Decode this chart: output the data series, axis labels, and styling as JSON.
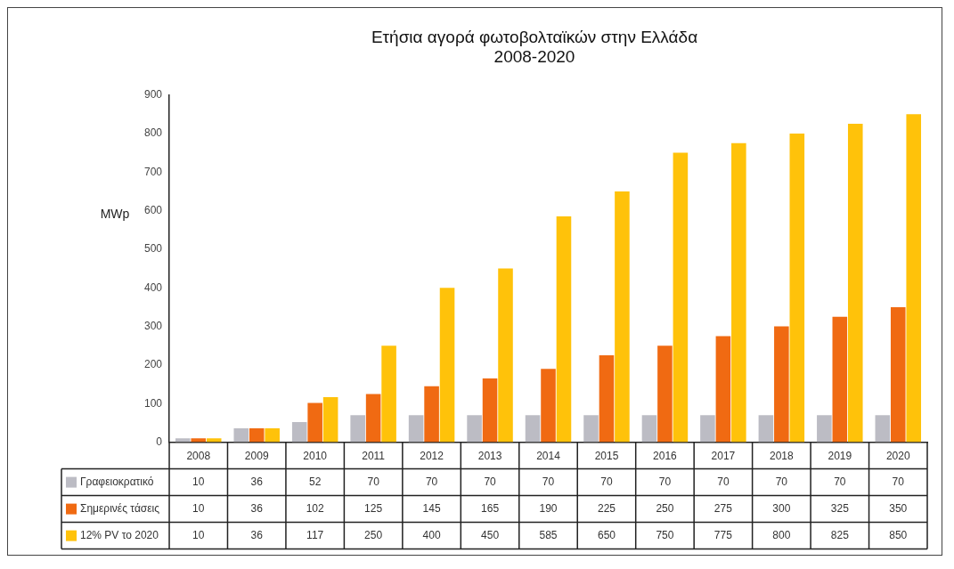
{
  "chart_data": {
    "type": "bar",
    "title": "Ετήσια αγορά φωτοβολταϊκών στην Ελλάδα\n2008-2020",
    "ylabel": "MWp",
    "categories": [
      "2008",
      "2009",
      "2010",
      "2011",
      "2012",
      "2013",
      "2014",
      "2015",
      "2016",
      "2017",
      "2018",
      "2019",
      "2020"
    ],
    "series": [
      {
        "name": "Γραφειοκρατικό",
        "color": "#bcbcc4",
        "values": [
          10,
          36,
          52,
          70,
          70,
          70,
          70,
          70,
          70,
          70,
          70,
          70,
          70
        ]
      },
      {
        "name": "Σημερινές τάσεις",
        "color": "#f06a12",
        "values": [
          10,
          36,
          102,
          125,
          145,
          165,
          190,
          225,
          250,
          275,
          300,
          325,
          350
        ]
      },
      {
        "name": "12% PV το 2020",
        "color": "#ffc20a",
        "values": [
          10,
          36,
          117,
          250,
          400,
          450,
          585,
          650,
          750,
          775,
          800,
          825,
          850
        ]
      }
    ],
    "ylim": [
      0,
      900
    ],
    "yticks": [
      0,
      100,
      200,
      300,
      400,
      500,
      600,
      700,
      800,
      900
    ],
    "grid": false,
    "legend": "bottom",
    "data_labels": true
  }
}
